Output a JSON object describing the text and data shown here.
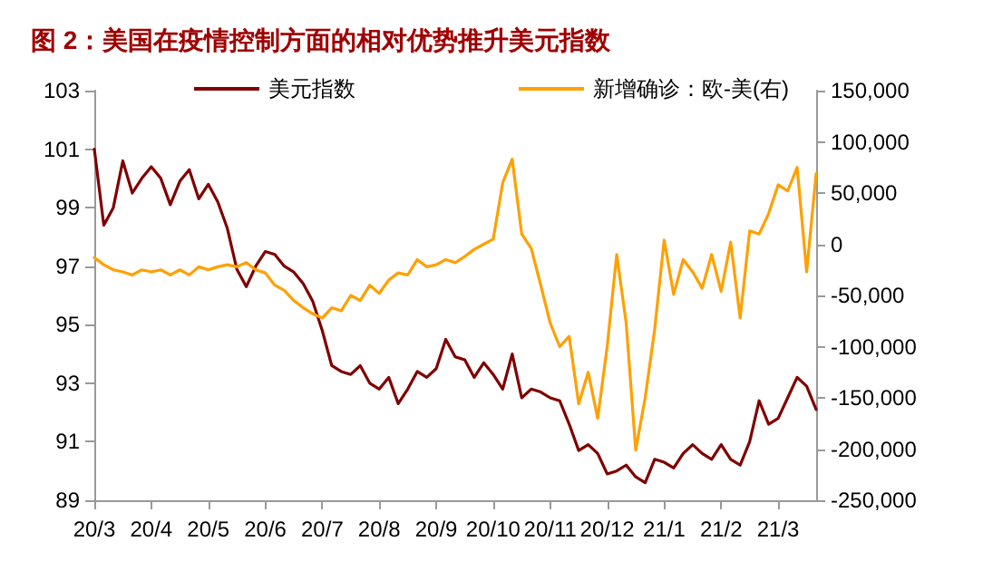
{
  "chart_data": {
    "type": "line",
    "title": "图 2：美国在疫情控制方面的相对优势推升美元指数",
    "categories": [
      "20/3",
      null,
      null,
      null,
      null,
      null,
      "20/4",
      null,
      null,
      null,
      null,
      null,
      "20/5",
      null,
      null,
      null,
      null,
      null,
      "20/6",
      null,
      null,
      null,
      null,
      null,
      "20/7",
      null,
      null,
      null,
      null,
      null,
      "20/8",
      null,
      null,
      null,
      null,
      null,
      "20/9",
      null,
      null,
      null,
      null,
      null,
      "20/10",
      null,
      null,
      null,
      null,
      null,
      "20/11",
      null,
      null,
      null,
      null,
      null,
      "20/12",
      null,
      null,
      null,
      null,
      null,
      "21/1",
      null,
      null,
      null,
      null,
      null,
      "21/2",
      null,
      null,
      null,
      null,
      null,
      "21/3",
      null,
      null,
      null,
      null
    ],
    "series": [
      {
        "name": "美元指数",
        "color": "#800000",
        "values": [
          101,
          98.4,
          99.0,
          100.6,
          99.5,
          100.0,
          100.4,
          100.0,
          99.1,
          99.9,
          100.3,
          99.3,
          99.8,
          99.2,
          98.3,
          96.9,
          96.3,
          97.0,
          97.5,
          97.4,
          97.0,
          96.8,
          96.4,
          95.8,
          94.8,
          93.6,
          93.4,
          93.3,
          93.6,
          93.0,
          92.8,
          93.2,
          92.3,
          92.8,
          93.4,
          93.2,
          93.5,
          94.5,
          93.9,
          93.8,
          93.2,
          93.7,
          93.3,
          92.8,
          94.0,
          92.5,
          92.8,
          92.7,
          92.5,
          92.4,
          91.6,
          90.7,
          90.9,
          90.6,
          89.9,
          90.0,
          90.2,
          89.8,
          89.6,
          90.4,
          90.3,
          90.1,
          90.6,
          90.9,
          90.6,
          90.4,
          90.9,
          90.4,
          90.2,
          91.0,
          92.4,
          91.6,
          91.8,
          92.5,
          93.2,
          92.9,
          92.1
        ]
      },
      {
        "name": "新增确诊：欧-美(右)",
        "color": "#ffa000",
        "axis": "y2",
        "values": [
          -13000,
          -20000,
          -25000,
          -27000,
          -30000,
          -25000,
          -27000,
          -25000,
          -30000,
          -25000,
          -30000,
          -22000,
          -25000,
          -22000,
          -20000,
          -22000,
          -18000,
          -25000,
          -28000,
          -40000,
          -45000,
          -55000,
          -62000,
          -68000,
          -72000,
          -62000,
          -65000,
          -50000,
          -55000,
          -40000,
          -48000,
          -35000,
          -28000,
          -30000,
          -15000,
          -22000,
          -20000,
          -15000,
          -18000,
          -12000,
          -5000,
          0,
          5000,
          60000,
          83000,
          10000,
          -4000,
          -40000,
          -77000,
          -100000,
          -90000,
          -156000,
          -125000,
          -170000,
          -100000,
          -10000,
          -77000,
          -201000,
          -150000,
          -83000,
          4000,
          -49000,
          -15000,
          -27000,
          -43000,
          -10000,
          -46000,
          2000,
          -72000,
          13000,
          10000,
          30000,
          58000,
          52000,
          75000,
          -27000,
          69000
        ]
      }
    ],
    "ylim": [
      89,
      103
    ],
    "yticks": [
      89,
      91,
      93,
      95,
      97,
      99,
      101,
      103
    ],
    "y2lim": [
      -250000,
      150000
    ],
    "y2ticks": [
      {
        "value": -250000,
        "label": "-250,000"
      },
      {
        "value": -200000,
        "label": "-200,000"
      },
      {
        "value": -150000,
        "label": "-150,000"
      },
      {
        "value": -100000,
        "label": "-100,000"
      },
      {
        "value": -50000,
        "label": "-50,000"
      },
      {
        "value": 0,
        "label": "0"
      },
      {
        "value": 50000,
        "label": "50,000"
      },
      {
        "value": 100000,
        "label": "100,000"
      },
      {
        "value": 150000,
        "label": "150,000"
      }
    ],
    "legend": "top",
    "grid": false,
    "marker": "none",
    "line_style": "solid"
  }
}
